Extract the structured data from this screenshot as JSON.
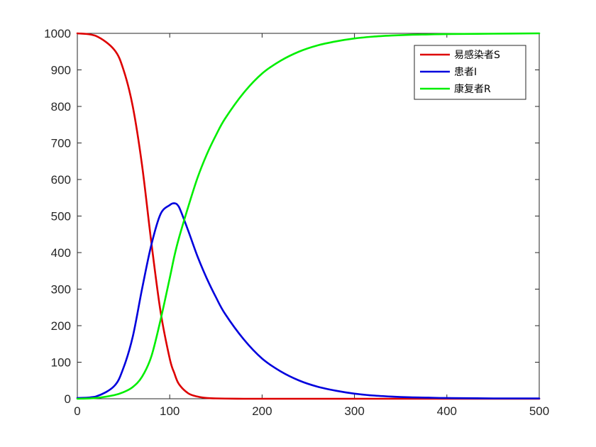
{
  "chart_data": {
    "type": "line",
    "title": "",
    "xlabel": "",
    "ylabel": "",
    "xlim": [
      0,
      500
    ],
    "ylim": [
      0,
      1000
    ],
    "xticks": [
      "0",
      "100",
      "200",
      "300",
      "400",
      "500"
    ],
    "yticks": [
      "0",
      "100",
      "200",
      "300",
      "400",
      "500",
      "600",
      "700",
      "800",
      "900",
      "1000"
    ],
    "grid": false,
    "legend_position": "top-right",
    "x": [
      0,
      20,
      40,
      50,
      60,
      70,
      80,
      90,
      100,
      105,
      110,
      120,
      130,
      140,
      150,
      160,
      180,
      200,
      220,
      240,
      260,
      280,
      300,
      320,
      340,
      360,
      380,
      400,
      450,
      500
    ],
    "series": [
      {
        "name": "易感染者S",
        "color": "#dd0000",
        "values": [
          1000,
          993,
          955,
          900,
          800,
          640,
          430,
          240,
          110,
          70,
          40,
          15,
          6,
          2,
          1,
          0.5,
          0,
          0,
          0,
          0,
          0,
          0,
          0,
          0,
          0,
          0,
          0,
          0,
          0,
          0
        ]
      },
      {
        "name": "患者I",
        "color": "#0000dd",
        "values": [
          2,
          6,
          35,
          85,
          170,
          300,
          420,
          505,
          530,
          535,
          525,
          460,
          390,
          330,
          278,
          232,
          163,
          110,
          75,
          50,
          33,
          22,
          14,
          9,
          6,
          4,
          3,
          2,
          1,
          1
        ]
      },
      {
        "name": "康复者R",
        "color": "#00ee00",
        "values": [
          0,
          2,
          10,
          18,
          32,
          60,
          115,
          215,
          330,
          390,
          440,
          525,
          604,
          668,
          721,
          767,
          837,
          890,
          925,
          950,
          967,
          978,
          986,
          991,
          994,
          996,
          997,
          998,
          999,
          1000
        ]
      }
    ]
  }
}
